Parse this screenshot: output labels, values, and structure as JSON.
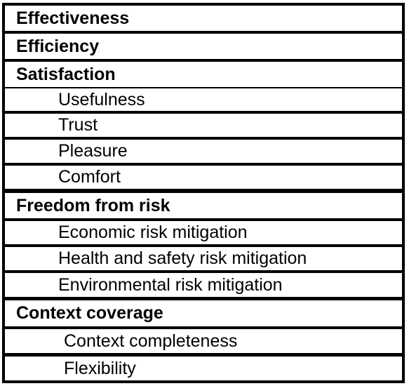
{
  "table": {
    "rows": [
      {
        "text": "Effectiveness",
        "level": "category"
      },
      {
        "text": "Efficiency",
        "level": "category"
      },
      {
        "text": "Satisfaction",
        "level": "category"
      },
      {
        "text": "Usefulness",
        "level": "sub"
      },
      {
        "text": "Trust",
        "level": "sub"
      },
      {
        "text": "Pleasure",
        "level": "sub"
      },
      {
        "text": "Comfort",
        "level": "sub"
      },
      {
        "text": "Freedom from risk",
        "level": "category"
      },
      {
        "text": "Economic risk mitigation",
        "level": "sub"
      },
      {
        "text": "Health and safety risk mitigation",
        "level": "sub"
      },
      {
        "text": "Environmental risk mitigation",
        "level": "sub"
      },
      {
        "text": "Context coverage",
        "level": "category"
      },
      {
        "text": "Context completeness",
        "level": "sub"
      },
      {
        "text": "Flexibility",
        "level": "sub"
      }
    ]
  }
}
